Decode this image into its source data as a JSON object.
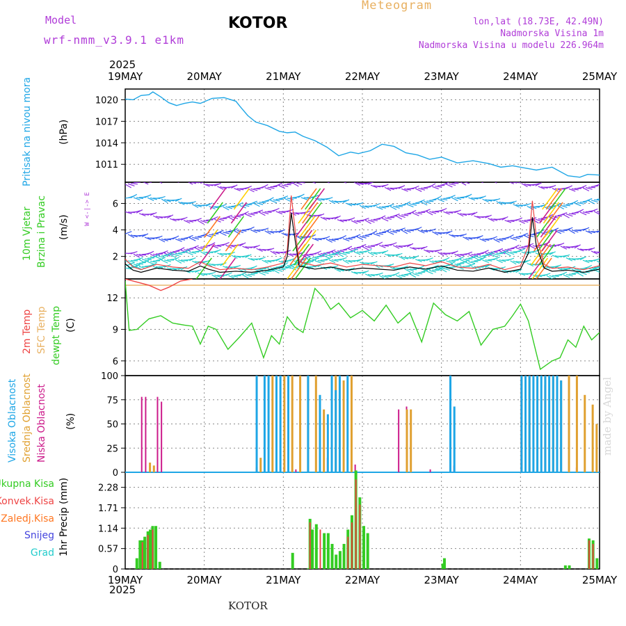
{
  "header": {
    "model_label": "Model",
    "model_name": "wrf-nmm_v3.9.1 e1km",
    "station": "KOTOR",
    "title": "Meteogram",
    "lonlat": "lon,lat (18.73E, 42.49N)",
    "elevation": "Nadmorska Visina 1m",
    "model_elevation": "Nadmorska Visina u modelu 226.964m",
    "credit": "made by Angel"
  },
  "footer": {
    "station": "KOTOR"
  },
  "time_axis": {
    "year": "2025",
    "ticks": [
      "19MAY",
      "20MAY",
      "21MAY",
      "22MAY",
      "23MAY",
      "24MAY",
      "25MAY"
    ]
  },
  "colors": {
    "pressure": "#1ea6e6",
    "temp2m": "#ee4444",
    "sfc_temp": "#e8b060",
    "dewpoint": "#33cc22",
    "wind_label": "#33cc22",
    "high_cloud": "#1ea6e6",
    "mid_cloud": "#e0a030",
    "low_cloud": "#cc1a8a",
    "total_precip": "#33cc22",
    "conv_precip": "#ee4444",
    "grid_scale_precip": "#ff7722",
    "snow": "#4444dd",
    "hail": "#22cccc"
  },
  "chart_data": [
    {
      "id": "pressure",
      "type": "line",
      "ylabel_1": "Pritisak na nivou mora",
      "ylabel_2": "(hPa)",
      "ylim": [
        1008.5,
        1021.5
      ],
      "yticks": [
        "1020",
        "1017",
        "1014",
        "1011"
      ],
      "ytick_values": [
        1020,
        1017,
        1014,
        1011
      ],
      "series": [
        {
          "x": [
            0,
            0.1,
            0.2,
            0.3,
            0.35,
            0.45,
            0.55,
            0.65,
            0.75,
            0.85,
            0.95,
            1.1,
            1.25,
            1.4,
            1.45,
            1.55,
            1.65,
            1.8,
            1.95,
            2.05,
            2.15,
            2.25,
            2.4,
            2.55,
            2.7,
            2.85,
            2.95,
            3.1,
            3.25,
            3.4,
            3.55,
            3.7,
            3.85,
            4.0,
            4.2,
            4.4,
            4.6,
            4.75,
            4.9,
            5.05,
            5.2,
            5.4,
            5.6,
            5.75,
            5.85,
            6.0
          ],
          "y": [
            1020.1,
            1020.0,
            1020.6,
            1020.7,
            1021.1,
            1020.4,
            1019.6,
            1019.2,
            1019.5,
            1019.7,
            1019.5,
            1020.2,
            1020.3,
            1019.8,
            1019.1,
            1017.8,
            1016.9,
            1016.4,
            1015.6,
            1015.4,
            1015.5,
            1014.9,
            1014.3,
            1013.4,
            1012.2,
            1012.7,
            1012.5,
            1012.9,
            1013.8,
            1013.5,
            1012.6,
            1012.3,
            1011.7,
            1012.0,
            1011.2,
            1011.5,
            1011.1,
            1010.6,
            1010.8,
            1010.5,
            1010.2,
            1010.6,
            1009.4,
            1009.2,
            1009.6,
            1009.5
          ]
        }
      ]
    },
    {
      "id": "wind",
      "type": "line",
      "ylabel_1": "10m Vjetar",
      "ylabel_2": "Brzina i Pravac",
      "ylabel_3": "(m/s)",
      "compass": "W <-|-> E",
      "ylim": [
        0.3,
        7.6
      ],
      "yticks": [
        "2",
        "4",
        "6"
      ],
      "ytick_values": [
        2,
        4,
        6
      ],
      "series": [
        {
          "name": "speed",
          "x": [
            0,
            0.1,
            0.2,
            0.4,
            0.6,
            0.8,
            0.95,
            1.05,
            1.2,
            1.4,
            1.6,
            1.8,
            2.0,
            2.05,
            2.1,
            2.15,
            2.2,
            2.4,
            2.6,
            2.8,
            3.0,
            3.2,
            3.4,
            3.6,
            3.8,
            4.0,
            4.2,
            4.4,
            4.6,
            4.8,
            5.0,
            5.1,
            5.15,
            5.2,
            5.3,
            5.4,
            5.6,
            5.8,
            6.0
          ],
          "y": [
            1.8,
            1.2,
            1.0,
            1.4,
            1.2,
            1.1,
            1.6,
            1.3,
            1.0,
            1.1,
            1.0,
            1.2,
            1.5,
            2.5,
            6.6,
            4.0,
            1.6,
            1.3,
            1.5,
            1.2,
            1.4,
            1.3,
            1.2,
            1.5,
            1.3,
            1.6,
            1.2,
            1.1,
            1.4,
            1.0,
            1.3,
            2.8,
            6.2,
            3.5,
            1.4,
            1.1,
            1.2,
            1.0,
            1.3
          ]
        }
      ]
    },
    {
      "id": "temperature",
      "type": "line",
      "ylabel_1": "2m Temp",
      "ylabel_2": "SFC Temp",
      "ylabel_3": "dewpt Temp",
      "ylabel_4": "(C)",
      "ylim": [
        4.6,
        13.8
      ],
      "yticks": [
        "12",
        "9",
        "6"
      ],
      "ytick_values": [
        12,
        9,
        6
      ],
      "series": [
        {
          "name": "2m Temp",
          "x": [
            0,
            0.15,
            0.3,
            0.45,
            0.55,
            0.7,
            0.85
          ],
          "y": [
            13.8,
            13.5,
            13.2,
            12.7,
            13.0,
            13.6,
            13.8
          ]
        },
        {
          "name": "SFC Temp",
          "x": [
            0,
            6.0
          ],
          "y": [
            13.2,
            13.2
          ]
        },
        {
          "name": "dewpt Temp",
          "x": [
            0,
            0.05,
            0.15,
            0.3,
            0.45,
            0.6,
            0.75,
            0.85,
            0.95,
            1.05,
            1.15,
            1.3,
            1.45,
            1.6,
            1.75,
            1.85,
            1.95,
            2.05,
            2.15,
            2.25,
            2.4,
            2.5,
            2.6,
            2.7,
            2.85,
            3.0,
            3.15,
            3.3,
            3.45,
            3.6,
            3.75,
            3.9,
            4.05,
            4.2,
            4.35,
            4.5,
            4.65,
            4.8,
            4.9,
            5.0,
            5.1,
            5.25,
            5.4,
            5.5,
            5.6,
            5.7,
            5.8,
            5.9,
            6.0
          ],
          "y": [
            13.6,
            8.9,
            9.0,
            10.0,
            10.3,
            9.6,
            9.4,
            9.3,
            7.6,
            9.3,
            9.0,
            7.1,
            8.3,
            9.6,
            6.3,
            8.4,
            7.6,
            10.2,
            9.2,
            8.7,
            12.9,
            12.1,
            10.9,
            11.5,
            10.1,
            10.8,
            9.8,
            11.3,
            9.6,
            10.6,
            7.8,
            11.5,
            10.4,
            9.8,
            10.7,
            7.5,
            9.0,
            9.3,
            10.3,
            11.4,
            9.8,
            5.2,
            6.0,
            6.3,
            8.0,
            7.3,
            9.3,
            8.0,
            8.7
          ]
        }
      ]
    },
    {
      "id": "clouds",
      "type": "bar",
      "ylabel_1": "Visoka Oblacnost",
      "ylabel_2": "Srednja Oblacnost",
      "ylabel_3": "Niska Oblacnost",
      "ylabel_4": "(%)",
      "ylim": [
        0,
        100
      ],
      "yticks": [
        "100",
        "75",
        "50",
        "25",
        "0"
      ],
      "ytick_values": [
        100,
        75,
        50,
        25,
        0
      ],
      "series": [
        {
          "name": "Niska Oblacnost",
          "x": [
            0.2,
            0.25,
            0.4,
            0.45,
            2.0,
            2.15,
            2.55,
            2.9,
            3.45,
            3.55,
            3.85,
            4.15,
            5.0,
            5.3,
            5.7
          ],
          "values": [
            78,
            78,
            78,
            73,
            5,
            3,
            15,
            8,
            65,
            68,
            3,
            7,
            95,
            90,
            5
          ]
        },
        {
          "name": "Srednja Oblacnost",
          "x": [
            0.3,
            0.35,
            1.65,
            1.7,
            1.85,
            2.0,
            2.1,
            2.2,
            2.3,
            2.4,
            2.5,
            2.65,
            2.75,
            2.85,
            3.55,
            3.6,
            5.0,
            5.1,
            5.2,
            5.3,
            5.4,
            5.5,
            5.6,
            5.7,
            5.8,
            5.9,
            5.95
          ],
          "values": [
            10,
            7,
            5,
            15,
            100,
            100,
            100,
            100,
            100,
            100,
            65,
            100,
            95,
            100,
            65,
            65,
            100,
            100,
            100,
            100,
            100,
            95,
            100,
            100,
            80,
            70,
            50
          ]
        },
        {
          "name": "Visoka Oblacnost",
          "x": [
            1.65,
            1.75,
            1.8,
            1.9,
            1.95,
            2.05,
            2.3,
            2.45,
            2.55,
            2.6,
            2.65,
            2.7,
            2.8,
            4.1,
            4.15,
            5.0,
            5.05,
            5.1,
            5.15,
            5.2,
            5.25,
            5.3,
            5.35,
            5.4,
            5.45,
            5.5
          ],
          "values": [
            100,
            100,
            100,
            100,
            100,
            100,
            100,
            80,
            60,
            100,
            85,
            100,
            100,
            100,
            68,
            100,
            100,
            100,
            100,
            100,
            100,
            100,
            100,
            100,
            100,
            95
          ]
        }
      ]
    },
    {
      "id": "precip",
      "type": "bar",
      "ylabel_1": "1hr Precip",
      "ylabel_2": "(mm)",
      "ylim": [
        0,
        2.7
      ],
      "yticks": [
        "2.28",
        "1.71",
        "1.14",
        "0.57",
        "0"
      ],
      "ytick_values": [
        2.28,
        1.71,
        1.14,
        0.57,
        0
      ],
      "legend": [
        "Ukupna Kisa",
        "Konvek.Kisa",
        "Zaledj.Kisa",
        "Snijeg",
        "Grad"
      ],
      "series": [
        {
          "name": "Ukupna Kisa",
          "x": [
            0.13,
            0.17,
            0.2,
            0.23,
            0.27,
            0.3,
            0.33,
            0.37,
            0.42,
            2.1,
            2.3,
            2.32,
            2.35,
            2.4,
            2.5,
            2.55,
            2.6,
            2.65,
            2.7,
            2.75,
            2.8,
            2.85,
            2.9,
            2.95,
            3.0,
            3.05,
            4.0,
            4.02,
            5.55,
            5.6,
            5.85,
            5.9,
            5.95
          ],
          "values": [
            0.3,
            0.8,
            0.8,
            0.9,
            1.05,
            1.1,
            1.2,
            1.2,
            0.2,
            0.45,
            0.02,
            1.4,
            1.1,
            1.25,
            1.0,
            1.0,
            0.7,
            0.4,
            0.5,
            0.7,
            1.1,
            1.5,
            2.75,
            2.0,
            1.2,
            1.0,
            0.15,
            0.3,
            0.1,
            0.1,
            0.85,
            0.8,
            0.3
          ]
        },
        {
          "name": "Konvek.Kisa",
          "x": [
            0.2,
            0.27,
            0.33,
            2.32,
            2.45,
            2.8,
            2.85,
            2.9,
            2.95,
            5.85,
            5.9
          ],
          "values": [
            0.75,
            0.95,
            1.1,
            1.3,
            1.1,
            0.9,
            1.3,
            2.5,
            1.8,
            0.8,
            0.7
          ]
        }
      ]
    }
  ]
}
